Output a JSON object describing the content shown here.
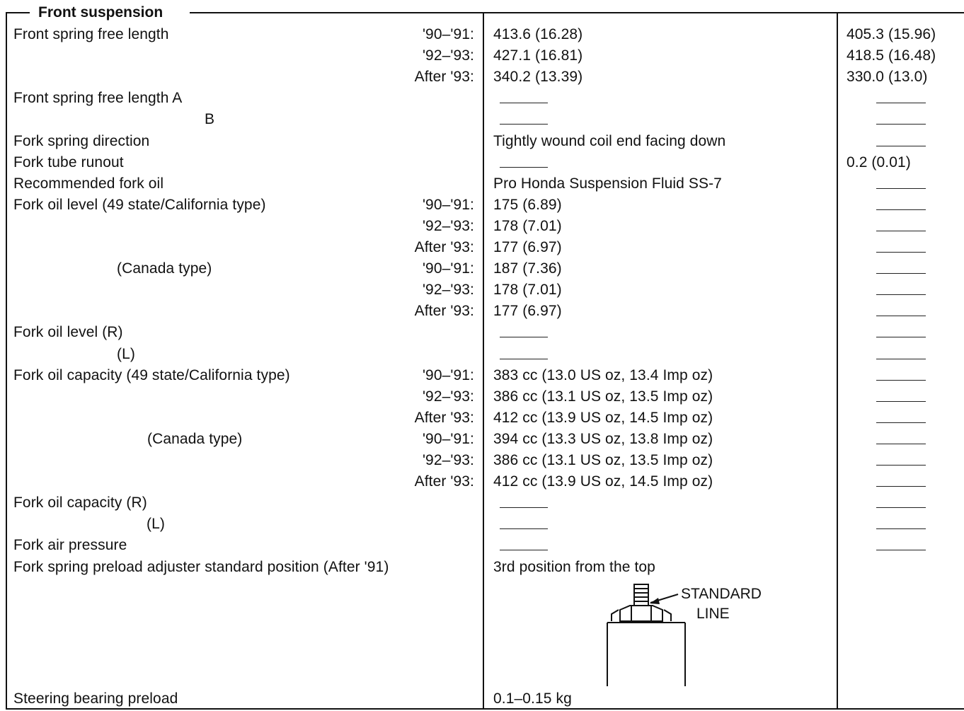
{
  "section_title": "Front suspension",
  "rows": [
    {
      "label": "Front spring free length",
      "year": "'90–'91:",
      "standard": "413.6 (16.28)",
      "limit": "405.3 (15.96)"
    },
    {
      "label": "",
      "year": "'92–'93:",
      "standard": "427.1 (16.81)",
      "limit": "418.5 (16.48)"
    },
    {
      "label": "",
      "year": "After '93:",
      "standard": "340.2 (13.39)",
      "limit": "330.0 (13.0)"
    },
    {
      "label": "Front spring free length A",
      "year": "",
      "standard": "",
      "limit": ""
    },
    {
      "label": "B",
      "year": "",
      "standard": "",
      "limit": ""
    },
    {
      "label": "Fork spring direction",
      "year": "",
      "standard": "Tightly wound coil end facing down",
      "limit": ""
    },
    {
      "label": "Fork tube runout",
      "year": "",
      "standard": "",
      "limit": "0.2 (0.01)"
    },
    {
      "label": "Recommended fork oil",
      "year": "",
      "standard": "Pro Honda Suspension Fluid SS-7",
      "limit": ""
    },
    {
      "label": "Fork oil level (49 state/California type)",
      "year": "'90–'91:",
      "standard": "175 (6.89)",
      "limit": ""
    },
    {
      "label": "",
      "year": "'92–'93:",
      "standard": "178 (7.01)",
      "limit": ""
    },
    {
      "label": "",
      "year": "After '93:",
      "standard": "177 (6.97)",
      "limit": ""
    },
    {
      "label": "(Canada type)",
      "year": "'90–'91:",
      "standard": "187 (7.36)",
      "limit": ""
    },
    {
      "label": "",
      "year": "'92–'93:",
      "standard": "178 (7.01)",
      "limit": ""
    },
    {
      "label": "",
      "year": "After '93:",
      "standard": "177 (6.97)",
      "limit": ""
    },
    {
      "label": "Fork oil level (R)",
      "year": "",
      "standard": "",
      "limit": ""
    },
    {
      "label": "(L)",
      "year": "",
      "standard": "",
      "limit": ""
    },
    {
      "label": "Fork oil capacity (49 state/California type)",
      "year": "'90–'91:",
      "standard": "383 cc (13.0 US oz, 13.4 Imp oz)",
      "limit": ""
    },
    {
      "label": "",
      "year": "'92–'93:",
      "standard": "386 cc (13.1 US oz, 13.5 Imp oz)",
      "limit": ""
    },
    {
      "label": "",
      "year": "After '93:",
      "standard": "412 cc (13.9 US oz, 14.5 Imp oz)",
      "limit": ""
    },
    {
      "label": "(Canada type)",
      "year": "'90–'91:",
      "standard": "394 cc (13.3 US oz, 13.8 Imp oz)",
      "limit": ""
    },
    {
      "label": "",
      "year": "'92–'93:",
      "standard": "386 cc (13.1 US oz, 13.5 Imp oz)",
      "limit": ""
    },
    {
      "label": "",
      "year": "After '93:",
      "standard": "412 cc (13.9 US oz, 14.5 Imp oz)",
      "limit": ""
    },
    {
      "label": "Fork oil capacity (R)",
      "year": "",
      "standard": "",
      "limit": ""
    },
    {
      "label": "(L)",
      "year": "",
      "standard": "",
      "limit": ""
    },
    {
      "label": "Fork air pressure",
      "year": "",
      "standard": "",
      "limit": ""
    },
    {
      "label": "Fork spring preload adjuster standard position (After '91)",
      "year": "",
      "standard": "3rd position from the top",
      "limit": ""
    }
  ],
  "figure": {
    "label_line1": "STANDARD",
    "label_line2": "LINE"
  },
  "last_row": {
    "label": "Steering bearing preload",
    "standard": "0.1–0.15 kg",
    "limit": ""
  }
}
